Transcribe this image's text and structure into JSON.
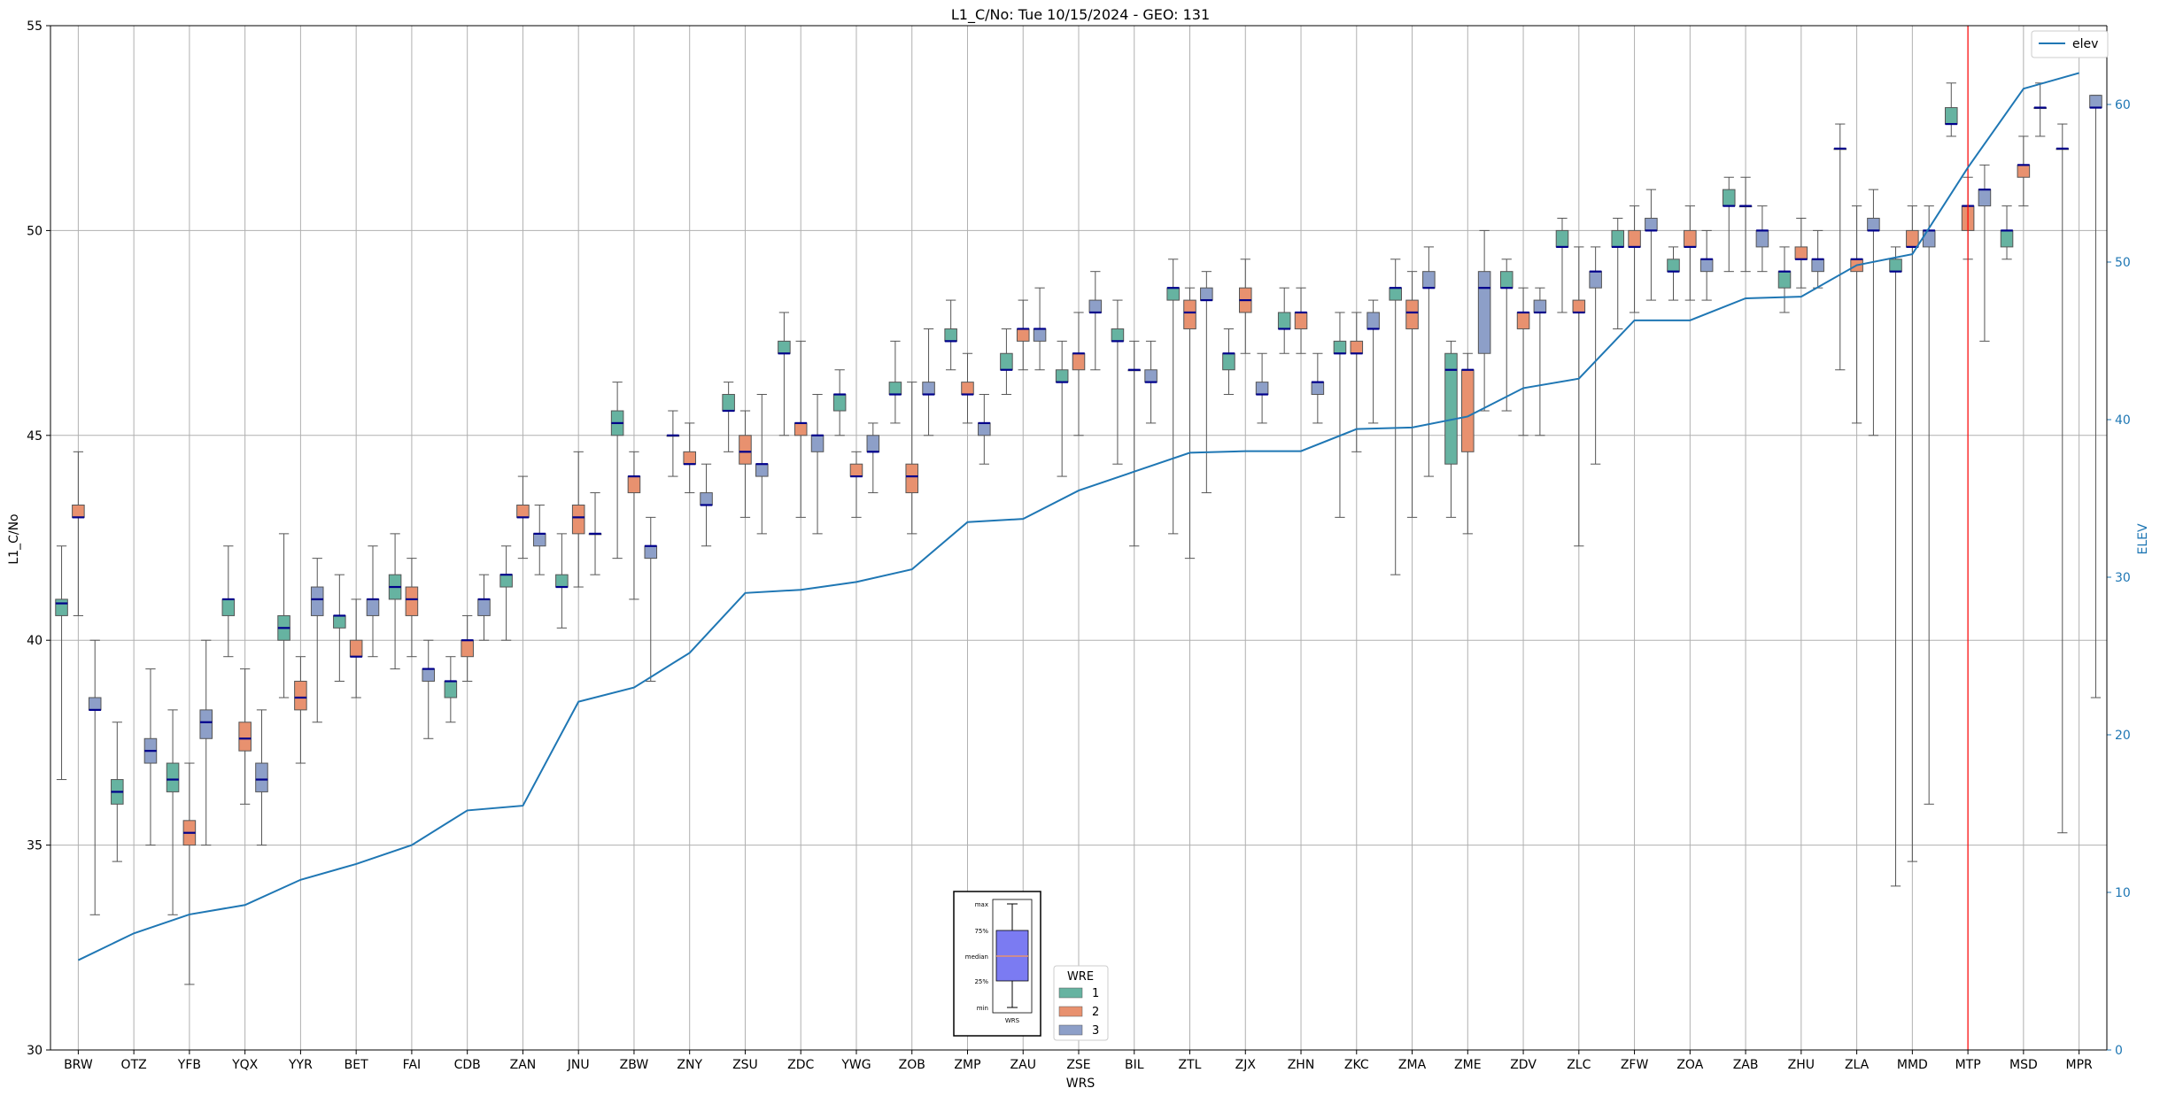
{
  "chart_data": {
    "type": "box",
    "title": "L1_C/No: Tue 10/15/2024 - GEO: 131",
    "xlabel": "WRS",
    "ylabel": "L1_C/No",
    "y2label": "ELEV",
    "ylim": [
      30,
      55
    ],
    "y2lim": [
      0,
      65
    ],
    "yticks": [
      30,
      35,
      40,
      45,
      50,
      55
    ],
    "y2ticks": [
      0,
      10,
      20,
      30,
      40,
      50,
      60
    ],
    "grid": true,
    "categories": [
      "BRW",
      "OTZ",
      "YFB",
      "YQX",
      "YYR",
      "BET",
      "FAI",
      "CDB",
      "ZAN",
      "JNU",
      "ZBW",
      "ZNY",
      "ZSU",
      "ZDC",
      "YWG",
      "ZOB",
      "ZMP",
      "ZAU",
      "ZSE",
      "BIL",
      "ZTL",
      "ZJX",
      "ZHN",
      "ZKC",
      "ZMA",
      "ZME",
      "ZDV",
      "ZLC",
      "ZFW",
      "ZOA",
      "ZAB",
      "ZHU",
      "ZLA",
      "MMD",
      "MTP",
      "MSD",
      "MPR"
    ],
    "colors": {
      "1": "#66b3a1",
      "2": "#e8916f",
      "3": "#8d9fc8",
      "median": "#00008b",
      "elev": "#1f77b4",
      "marker": "#ff0000"
    },
    "boxes": [
      {
        "cat": "BRW",
        "wre": "1",
        "min": 36.6,
        "q1": 40.6,
        "med": 40.9,
        "q3": 41.0,
        "max": 42.3
      },
      {
        "cat": "BRW",
        "wre": "2",
        "min": 40.6,
        "q1": 43.0,
        "med": 43.0,
        "q3": 43.3,
        "max": 44.6
      },
      {
        "cat": "BRW",
        "wre": "3",
        "min": 33.3,
        "q1": 38.3,
        "med": 38.3,
        "q3": 38.6,
        "max": 40.0
      },
      {
        "cat": "OTZ",
        "wre": "1",
        "min": 34.6,
        "q1": 36.0,
        "med": 36.3,
        "q3": 36.6,
        "max": 38.0
      },
      {
        "cat": "OTZ",
        "wre": "3",
        "min": 35.0,
        "q1": 37.0,
        "med": 37.3,
        "q3": 37.6,
        "max": 39.3
      },
      {
        "cat": "YFB",
        "wre": "1",
        "min": 33.3,
        "q1": 36.3,
        "med": 36.6,
        "q3": 37.0,
        "max": 38.3
      },
      {
        "cat": "YFB",
        "wre": "2",
        "min": 31.6,
        "q1": 35.0,
        "med": 35.3,
        "q3": 35.6,
        "max": 37.0
      },
      {
        "cat": "YFB",
        "wre": "3",
        "min": 35.0,
        "q1": 37.6,
        "med": 38.0,
        "q3": 38.3,
        "max": 40.0
      },
      {
        "cat": "YQX",
        "wre": "1",
        "min": 39.6,
        "q1": 40.6,
        "med": 41.0,
        "q3": 41.0,
        "max": 42.3
      },
      {
        "cat": "YQX",
        "wre": "2",
        "min": 36.0,
        "q1": 37.3,
        "med": 37.6,
        "q3": 38.0,
        "max": 39.3
      },
      {
        "cat": "YQX",
        "wre": "3",
        "min": 35.0,
        "q1": 36.3,
        "med": 36.6,
        "q3": 37.0,
        "max": 38.3
      },
      {
        "cat": "YYR",
        "wre": "1",
        "min": 38.6,
        "q1": 40.0,
        "med": 40.3,
        "q3": 40.6,
        "max": 42.6
      },
      {
        "cat": "YYR",
        "wre": "2",
        "min": 37.0,
        "q1": 38.3,
        "med": 38.6,
        "q3": 39.0,
        "max": 39.6
      },
      {
        "cat": "YYR",
        "wre": "3",
        "min": 38.0,
        "q1": 40.6,
        "med": 41.0,
        "q3": 41.3,
        "max": 42.0
      },
      {
        "cat": "BET",
        "wre": "1",
        "min": 39.0,
        "q1": 40.3,
        "med": 40.6,
        "q3": 40.6,
        "max": 41.6
      },
      {
        "cat": "BET",
        "wre": "2",
        "min": 38.6,
        "q1": 39.6,
        "med": 39.6,
        "q3": 40.0,
        "max": 41.0
      },
      {
        "cat": "BET",
        "wre": "3",
        "min": 39.6,
        "q1": 40.6,
        "med": 41.0,
        "q3": 41.0,
        "max": 42.3
      },
      {
        "cat": "FAI",
        "wre": "1",
        "min": 39.3,
        "q1": 41.0,
        "med": 41.3,
        "q3": 41.6,
        "max": 42.6
      },
      {
        "cat": "FAI",
        "wre": "2",
        "min": 39.6,
        "q1": 40.6,
        "med": 41.0,
        "q3": 41.3,
        "max": 42.0
      },
      {
        "cat": "FAI",
        "wre": "3",
        "min": 37.6,
        "q1": 39.0,
        "med": 39.3,
        "q3": 39.3,
        "max": 40.0
      },
      {
        "cat": "CDB",
        "wre": "1",
        "min": 38.0,
        "q1": 38.6,
        "med": 39.0,
        "q3": 39.0,
        "max": 39.6
      },
      {
        "cat": "CDB",
        "wre": "2",
        "min": 39.0,
        "q1": 39.6,
        "med": 40.0,
        "q3": 40.0,
        "max": 40.6
      },
      {
        "cat": "CDB",
        "wre": "3",
        "min": 40.0,
        "q1": 40.6,
        "med": 41.0,
        "q3": 41.0,
        "max": 41.6
      },
      {
        "cat": "ZAN",
        "wre": "1",
        "min": 40.0,
        "q1": 41.3,
        "med": 41.6,
        "q3": 41.6,
        "max": 42.3
      },
      {
        "cat": "ZAN",
        "wre": "2",
        "min": 42.0,
        "q1": 43.0,
        "med": 43.0,
        "q3": 43.3,
        "max": 44.0
      },
      {
        "cat": "ZAN",
        "wre": "3",
        "min": 41.6,
        "q1": 42.3,
        "med": 42.6,
        "q3": 42.6,
        "max": 43.3
      },
      {
        "cat": "JNU",
        "wre": "1",
        "min": 40.3,
        "q1": 41.3,
        "med": 41.3,
        "q3": 41.6,
        "max": 42.6
      },
      {
        "cat": "JNU",
        "wre": "2",
        "min": 41.3,
        "q1": 42.6,
        "med": 43.0,
        "q3": 43.3,
        "max": 44.6
      },
      {
        "cat": "JNU",
        "wre": "3",
        "min": 41.6,
        "q1": 42.6,
        "med": 42.6,
        "q3": 42.6,
        "max": 43.6
      },
      {
        "cat": "ZBW",
        "wre": "1",
        "min": 42.0,
        "q1": 45.0,
        "med": 45.3,
        "q3": 45.6,
        "max": 46.3
      },
      {
        "cat": "ZBW",
        "wre": "2",
        "min": 41.0,
        "q1": 43.6,
        "med": 44.0,
        "q3": 44.0,
        "max": 44.6
      },
      {
        "cat": "ZBW",
        "wre": "3",
        "min": 39.0,
        "q1": 42.0,
        "med": 42.3,
        "q3": 42.3,
        "max": 43.0
      },
      {
        "cat": "ZNY",
        "wre": "1",
        "min": 44.0,
        "q1": 45.0,
        "med": 45.0,
        "q3": 45.0,
        "max": 45.6
      },
      {
        "cat": "ZNY",
        "wre": "2",
        "min": 43.6,
        "q1": 44.3,
        "med": 44.3,
        "q3": 44.6,
        "max": 45.3
      },
      {
        "cat": "ZNY",
        "wre": "3",
        "min": 42.3,
        "q1": 43.3,
        "med": 43.3,
        "q3": 43.6,
        "max": 44.3
      },
      {
        "cat": "ZSU",
        "wre": "1",
        "min": 44.6,
        "q1": 45.6,
        "med": 45.6,
        "q3": 46.0,
        "max": 46.3
      },
      {
        "cat": "ZSU",
        "wre": "2",
        "min": 43.0,
        "q1": 44.3,
        "med": 44.6,
        "q3": 45.0,
        "max": 45.6
      },
      {
        "cat": "ZSU",
        "wre": "3",
        "min": 42.6,
        "q1": 44.0,
        "med": 44.3,
        "q3": 44.3,
        "max": 46.0
      },
      {
        "cat": "ZDC",
        "wre": "1",
        "min": 45.0,
        "q1": 47.0,
        "med": 47.0,
        "q3": 47.3,
        "max": 48.0
      },
      {
        "cat": "ZDC",
        "wre": "2",
        "min": 43.0,
        "q1": 45.0,
        "med": 45.3,
        "q3": 45.3,
        "max": 47.3
      },
      {
        "cat": "ZDC",
        "wre": "3",
        "min": 42.6,
        "q1": 44.6,
        "med": 45.0,
        "q3": 45.0,
        "max": 46.0
      },
      {
        "cat": "YWG",
        "wre": "1",
        "min": 45.0,
        "q1": 45.6,
        "med": 46.0,
        "q3": 46.0,
        "max": 46.6
      },
      {
        "cat": "YWG",
        "wre": "2",
        "min": 43.0,
        "q1": 44.0,
        "med": 44.0,
        "q3": 44.3,
        "max": 44.6
      },
      {
        "cat": "YWG",
        "wre": "3",
        "min": 43.6,
        "q1": 44.6,
        "med": 44.6,
        "q3": 45.0,
        "max": 45.3
      },
      {
        "cat": "ZOB",
        "wre": "1",
        "min": 45.3,
        "q1": 46.0,
        "med": 46.0,
        "q3": 46.3,
        "max": 47.3
      },
      {
        "cat": "ZOB",
        "wre": "2",
        "min": 42.6,
        "q1": 43.6,
        "med": 44.0,
        "q3": 44.3,
        "max": 46.3
      },
      {
        "cat": "ZOB",
        "wre": "3",
        "min": 45.0,
        "q1": 46.0,
        "med": 46.0,
        "q3": 46.3,
        "max": 47.6
      },
      {
        "cat": "ZMP",
        "wre": "1",
        "min": 46.6,
        "q1": 47.3,
        "med": 47.3,
        "q3": 47.6,
        "max": 48.3
      },
      {
        "cat": "ZMP",
        "wre": "2",
        "min": 45.3,
        "q1": 46.0,
        "med": 46.0,
        "q3": 46.3,
        "max": 47.0
      },
      {
        "cat": "ZMP",
        "wre": "3",
        "min": 44.3,
        "q1": 45.0,
        "med": 45.3,
        "q3": 45.3,
        "max": 46.0
      },
      {
        "cat": "ZAU",
        "wre": "1",
        "min": 46.0,
        "q1": 46.6,
        "med": 46.6,
        "q3": 47.0,
        "max": 47.6
      },
      {
        "cat": "ZAU",
        "wre": "2",
        "min": 46.6,
        "q1": 47.3,
        "med": 47.6,
        "q3": 47.6,
        "max": 48.3
      },
      {
        "cat": "ZAU",
        "wre": "3",
        "min": 46.6,
        "q1": 47.3,
        "med": 47.6,
        "q3": 47.6,
        "max": 48.6
      },
      {
        "cat": "ZSE",
        "wre": "1",
        "min": 44.0,
        "q1": 46.3,
        "med": 46.3,
        "q3": 46.6,
        "max": 47.3
      },
      {
        "cat": "ZSE",
        "wre": "2",
        "min": 45.0,
        "q1": 46.6,
        "med": 47.0,
        "q3": 47.0,
        "max": 48.0
      },
      {
        "cat": "ZSE",
        "wre": "3",
        "min": 46.6,
        "q1": 48.0,
        "med": 48.0,
        "q3": 48.3,
        "max": 49.0
      },
      {
        "cat": "BIL",
        "wre": "1",
        "min": 44.3,
        "q1": 47.3,
        "med": 47.3,
        "q3": 47.6,
        "max": 48.3
      },
      {
        "cat": "BIL",
        "wre": "2",
        "min": 42.3,
        "q1": 46.6,
        "med": 46.6,
        "q3": 46.6,
        "max": 47.3
      },
      {
        "cat": "BIL",
        "wre": "3",
        "min": 45.3,
        "q1": 46.3,
        "med": 46.3,
        "q3": 46.6,
        "max": 47.3
      },
      {
        "cat": "ZTL",
        "wre": "1",
        "min": 42.6,
        "q1": 48.3,
        "med": 48.6,
        "q3": 48.6,
        "max": 49.3
      },
      {
        "cat": "ZTL",
        "wre": "2",
        "min": 42.0,
        "q1": 47.6,
        "med": 48.0,
        "q3": 48.3,
        "max": 48.6
      },
      {
        "cat": "ZTL",
        "wre": "3",
        "min": 43.6,
        "q1": 48.3,
        "med": 48.3,
        "q3": 48.6,
        "max": 49.0
      },
      {
        "cat": "ZJX",
        "wre": "1",
        "min": 46.0,
        "q1": 46.6,
        "med": 47.0,
        "q3": 47.0,
        "max": 47.6
      },
      {
        "cat": "ZJX",
        "wre": "2",
        "min": 47.0,
        "q1": 48.0,
        "med": 48.3,
        "q3": 48.6,
        "max": 49.3
      },
      {
        "cat": "ZJX",
        "wre": "3",
        "min": 45.3,
        "q1": 46.0,
        "med": 46.0,
        "q3": 46.3,
        "max": 47.0
      },
      {
        "cat": "ZHN",
        "wre": "1",
        "min": 47.0,
        "q1": 47.6,
        "med": 47.6,
        "q3": 48.0,
        "max": 48.6
      },
      {
        "cat": "ZHN",
        "wre": "2",
        "min": 47.0,
        "q1": 47.6,
        "med": 48.0,
        "q3": 48.0,
        "max": 48.6
      },
      {
        "cat": "ZHN",
        "wre": "3",
        "min": 45.3,
        "q1": 46.0,
        "med": 46.3,
        "q3": 46.3,
        "max": 47.0
      },
      {
        "cat": "ZKC",
        "wre": "1",
        "min": 43.0,
        "q1": 47.0,
        "med": 47.0,
        "q3": 47.3,
        "max": 48.0
      },
      {
        "cat": "ZKC",
        "wre": "2",
        "min": 44.6,
        "q1": 47.0,
        "med": 47.0,
        "q3": 47.3,
        "max": 48.0
      },
      {
        "cat": "ZKC",
        "wre": "3",
        "min": 45.3,
        "q1": 47.6,
        "med": 47.6,
        "q3": 48.0,
        "max": 48.3
      },
      {
        "cat": "ZMA",
        "wre": "1",
        "min": 41.6,
        "q1": 48.3,
        "med": 48.6,
        "q3": 48.6,
        "max": 49.3
      },
      {
        "cat": "ZMA",
        "wre": "2",
        "min": 43.0,
        "q1": 47.6,
        "med": 48.0,
        "q3": 48.3,
        "max": 49.0
      },
      {
        "cat": "ZMA",
        "wre": "3",
        "min": 44.0,
        "q1": 48.6,
        "med": 48.6,
        "q3": 49.0,
        "max": 49.6
      },
      {
        "cat": "ZME",
        "wre": "1",
        "min": 43.0,
        "q1": 44.3,
        "med": 46.6,
        "q3": 47.0,
        "max": 47.3
      },
      {
        "cat": "ZME",
        "wre": "2",
        "min": 42.6,
        "q1": 44.6,
        "med": 46.6,
        "q3": 46.6,
        "max": 47.0
      },
      {
        "cat": "ZME",
        "wre": "3",
        "min": 45.6,
        "q1": 47.0,
        "med": 48.6,
        "q3": 49.0,
        "max": 50.0
      },
      {
        "cat": "ZDV",
        "wre": "1",
        "min": 45.6,
        "q1": 48.6,
        "med": 48.6,
        "q3": 49.0,
        "max": 49.3
      },
      {
        "cat": "ZDV",
        "wre": "2",
        "min": 45.0,
        "q1": 47.6,
        "med": 48.0,
        "q3": 48.0,
        "max": 48.6
      },
      {
        "cat": "ZDV",
        "wre": "3",
        "min": 45.0,
        "q1": 48.0,
        "med": 48.0,
        "q3": 48.3,
        "max": 48.6
      },
      {
        "cat": "ZLC",
        "wre": "1",
        "min": 48.0,
        "q1": 49.6,
        "med": 49.6,
        "q3": 50.0,
        "max": 50.3
      },
      {
        "cat": "ZLC",
        "wre": "2",
        "min": 42.3,
        "q1": 48.0,
        "med": 48.0,
        "q3": 48.3,
        "max": 49.6
      },
      {
        "cat": "ZLC",
        "wre": "3",
        "min": 44.3,
        "q1": 48.6,
        "med": 49.0,
        "q3": 49.0,
        "max": 49.6
      },
      {
        "cat": "ZFW",
        "wre": "1",
        "min": 47.6,
        "q1": 49.6,
        "med": 49.6,
        "q3": 50.0,
        "max": 50.3
      },
      {
        "cat": "ZFW",
        "wre": "2",
        "min": 48.0,
        "q1": 49.6,
        "med": 49.6,
        "q3": 50.0,
        "max": 50.6
      },
      {
        "cat": "ZFW",
        "wre": "3",
        "min": 48.3,
        "q1": 50.0,
        "med": 50.0,
        "q3": 50.3,
        "max": 51.0
      },
      {
        "cat": "ZOA",
        "wre": "1",
        "min": 48.3,
        "q1": 49.0,
        "med": 49.0,
        "q3": 49.3,
        "max": 49.6
      },
      {
        "cat": "ZOA",
        "wre": "2",
        "min": 48.3,
        "q1": 49.6,
        "med": 49.6,
        "q3": 50.0,
        "max": 50.6
      },
      {
        "cat": "ZOA",
        "wre": "3",
        "min": 48.3,
        "q1": 49.0,
        "med": 49.3,
        "q3": 49.3,
        "max": 50.0
      },
      {
        "cat": "ZAB",
        "wre": "1",
        "min": 49.0,
        "q1": 50.6,
        "med": 50.6,
        "q3": 51.0,
        "max": 51.3
      },
      {
        "cat": "ZAB",
        "wre": "2",
        "min": 49.0,
        "q1": 50.6,
        "med": 50.6,
        "q3": 50.6,
        "max": 51.3
      },
      {
        "cat": "ZAB",
        "wre": "3",
        "min": 49.0,
        "q1": 49.6,
        "med": 50.0,
        "q3": 50.0,
        "max": 50.6
      },
      {
        "cat": "ZHU",
        "wre": "1",
        "min": 48.0,
        "q1": 48.6,
        "med": 49.0,
        "q3": 49.0,
        "max": 49.6
      },
      {
        "cat": "ZHU",
        "wre": "2",
        "min": 48.6,
        "q1": 49.3,
        "med": 49.3,
        "q3": 49.6,
        "max": 50.3
      },
      {
        "cat": "ZHU",
        "wre": "3",
        "min": 48.6,
        "q1": 49.0,
        "med": 49.3,
        "q3": 49.3,
        "max": 50.0
      },
      {
        "cat": "ZLA",
        "wre": "1",
        "min": 46.6,
        "q1": 52.0,
        "med": 52.0,
        "q3": 52.0,
        "max": 52.6
      },
      {
        "cat": "ZLA",
        "wre": "2",
        "min": 45.3,
        "q1": 49.0,
        "med": 49.3,
        "q3": 49.3,
        "max": 50.6
      },
      {
        "cat": "ZLA",
        "wre": "3",
        "min": 45.0,
        "q1": 50.0,
        "med": 50.0,
        "q3": 50.3,
        "max": 51.0
      },
      {
        "cat": "MMD",
        "wre": "1",
        "min": 34.0,
        "q1": 49.0,
        "med": 49.0,
        "q3": 49.3,
        "max": 49.6
      },
      {
        "cat": "MMD",
        "wre": "2",
        "min": 34.6,
        "q1": 49.6,
        "med": 49.6,
        "q3": 50.0,
        "max": 50.6
      },
      {
        "cat": "MMD",
        "wre": "3",
        "min": 36.0,
        "q1": 49.6,
        "med": 50.0,
        "q3": 50.0,
        "max": 50.6
      },
      {
        "cat": "MTP",
        "wre": "1",
        "min": 52.3,
        "q1": 52.6,
        "med": 52.6,
        "q3": 53.0,
        "max": 53.6
      },
      {
        "cat": "MTP",
        "wre": "2",
        "min": 49.3,
        "q1": 50.0,
        "med": 50.6,
        "q3": 50.6,
        "max": 51.3
      },
      {
        "cat": "MTP",
        "wre": "3",
        "min": 47.3,
        "q1": 50.6,
        "med": 51.0,
        "q3": 51.0,
        "max": 51.6
      },
      {
        "cat": "MSD",
        "wre": "1",
        "min": 49.3,
        "q1": 49.6,
        "med": 50.0,
        "q3": 50.0,
        "max": 50.6
      },
      {
        "cat": "MSD",
        "wre": "2",
        "min": 50.6,
        "q1": 51.3,
        "med": 51.6,
        "q3": 51.6,
        "max": 52.3
      },
      {
        "cat": "MSD",
        "wre": "3",
        "min": 52.3,
        "q1": 53.0,
        "med": 53.0,
        "q3": 53.0,
        "max": 53.6
      },
      {
        "cat": "MPR",
        "wre": "1",
        "min": 35.3,
        "q1": 52.0,
        "med": 52.0,
        "q3": 52.0,
        "max": 52.6
      },
      {
        "cat": "MPR",
        "wre": "3",
        "min": 38.6,
        "q1": 53.0,
        "med": 53.0,
        "q3": 53.3,
        "max": 53.3
      }
    ],
    "elev": [
      5.7,
      7.4,
      8.6,
      9.2,
      10.8,
      11.8,
      13.0,
      15.2,
      15.5,
      22.1,
      23.0,
      25.2,
      29.0,
      29.2,
      29.7,
      30.5,
      33.5,
      33.7,
      35.5,
      36.7,
      37.9,
      38.0,
      38.0,
      39.4,
      39.5,
      40.2,
      42.0,
      42.6,
      46.3,
      46.3,
      47.7,
      47.8,
      49.8,
      50.5,
      56.0,
      61.0,
      62.0
    ],
    "marker_category": "MTP",
    "legend_series": {
      "elev": "elev"
    },
    "wre_legend": {
      "title": "WRE",
      "entries": [
        "1",
        "2",
        "3"
      ]
    },
    "inset_key": {
      "labels": [
        "max",
        "75%",
        "median",
        "25%",
        "min"
      ],
      "xlabel": "WRS"
    }
  }
}
